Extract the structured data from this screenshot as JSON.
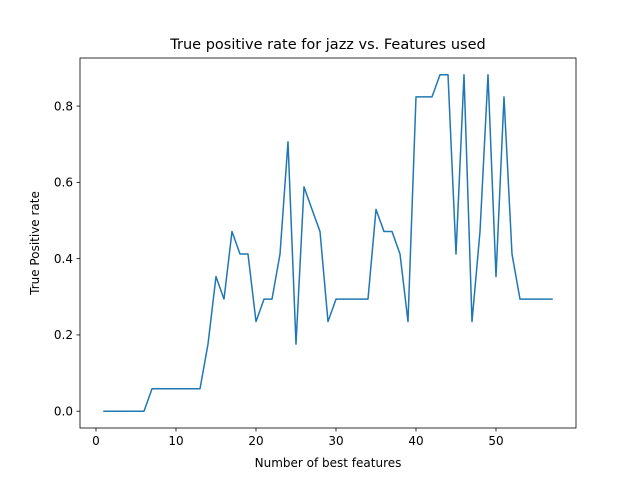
{
  "chart_data": {
    "type": "line",
    "title": "True positive rate for jazz vs. Features used",
    "xlabel": "Number of best features",
    "ylabel": "True Positive rate",
    "xlim": [
      -2,
      60
    ],
    "ylim": [
      -0.044,
      0.926
    ],
    "xticks": [
      0,
      10,
      20,
      30,
      40,
      50
    ],
    "yticks": [
      0.0,
      0.2,
      0.4,
      0.6,
      0.8
    ],
    "ytick_labels": [
      "0.0",
      "0.2",
      "0.4",
      "0.6",
      "0.8"
    ],
    "grid": false,
    "series": [
      {
        "color": "#1f77b4",
        "x": [
          1,
          2,
          3,
          4,
          5,
          6,
          7,
          8,
          9,
          10,
          11,
          12,
          13,
          14,
          15,
          16,
          17,
          18,
          19,
          20,
          21,
          22,
          23,
          24,
          25,
          26,
          27,
          28,
          29,
          30,
          31,
          32,
          33,
          34,
          35,
          36,
          37,
          38,
          39,
          40,
          41,
          42,
          43,
          44,
          45,
          46,
          47,
          48,
          49,
          50,
          51,
          52,
          53,
          54,
          55,
          56,
          57
        ],
        "values": [
          0.0,
          0.0,
          0.0,
          0.0,
          0.0,
          0.0,
          0.059,
          0.059,
          0.059,
          0.059,
          0.059,
          0.059,
          0.059,
          0.176,
          0.353,
          0.294,
          0.471,
          0.412,
          0.412,
          0.235,
          0.294,
          0.294,
          0.412,
          0.706,
          0.176,
          0.588,
          0.529,
          0.471,
          0.235,
          0.294,
          0.294,
          0.294,
          0.294,
          0.294,
          0.529,
          0.471,
          0.471,
          0.412,
          0.235,
          0.824,
          0.824,
          0.824,
          0.882,
          0.882,
          0.412,
          0.882,
          0.235,
          0.471,
          0.882,
          0.353,
          0.824,
          0.412,
          0.294,
          0.294,
          0.294,
          0.294,
          0.294
        ]
      }
    ]
  }
}
